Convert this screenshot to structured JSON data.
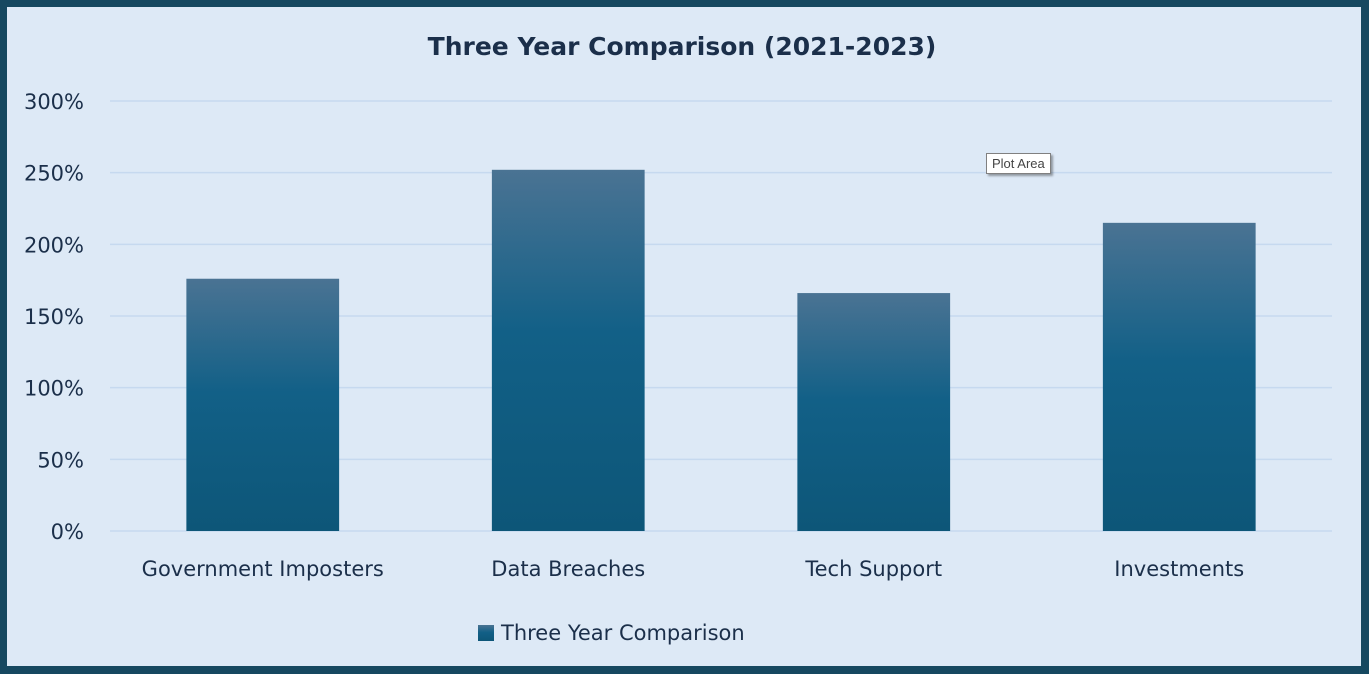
{
  "colors": {
    "frame_border": "#164860",
    "background": "#dde9f6",
    "bar_top": "#4a7393",
    "bar_mid": "#126087",
    "bar_bottom": "#0d5678",
    "text": "#1b2f4a",
    "gridline": "#c6d9ef"
  },
  "tooltip": {
    "text": "Plot Area"
  },
  "chart_data": {
    "type": "bar",
    "title": "Three Year Comparison (2021-2023)",
    "categories": [
      "Government Imposters",
      "Data Breaches",
      "Tech Support",
      "Investments"
    ],
    "series": [
      {
        "name": "Three Year Comparison",
        "values": [
          176,
          252,
          166,
          215
        ]
      }
    ],
    "value_unit": "%",
    "ylim": [
      0,
      300
    ],
    "y_ticks": [
      0,
      50,
      100,
      150,
      200,
      250,
      300
    ],
    "y_tick_labels": [
      "0%",
      "50%",
      "100%",
      "150%",
      "200%",
      "250%",
      "300%"
    ],
    "grid": true,
    "legend_position": "bottom"
  }
}
